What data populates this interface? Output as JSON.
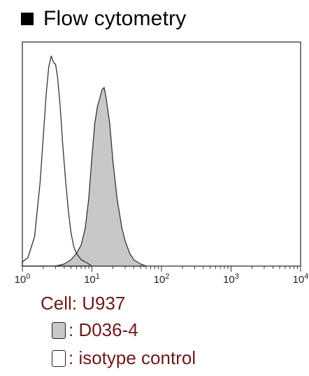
{
  "chart_data": {
    "type": "area",
    "title": "Flow cytometry",
    "xscale": "log",
    "xlim": [
      1,
      10000
    ],
    "xticks": [
      {
        "base": "10",
        "exp": "0"
      },
      {
        "base": "10",
        "exp": "1"
      },
      {
        "base": "10",
        "exp": "2"
      },
      {
        "base": "10",
        "exp": "3"
      },
      {
        "base": "10",
        "exp": "4"
      }
    ],
    "series": [
      {
        "name": "isotype control",
        "fill": "#ffffff",
        "x": [
          1.0,
          1.2,
          1.5,
          1.8,
          2.0,
          2.2,
          2.4,
          2.6,
          2.8,
          3.0,
          3.2,
          3.5,
          3.8,
          4.2,
          4.6,
          5.0,
          5.5,
          6.0,
          7.0,
          8.0,
          9.0,
          10.0
        ],
        "y": [
          2,
          4,
          14,
          40,
          62,
          82,
          95,
          100,
          97,
          96,
          90,
          76,
          58,
          40,
          26,
          16,
          9,
          6,
          3,
          2,
          1,
          0
        ]
      },
      {
        "name": "D036-4",
        "fill": "#c8c8c8",
        "x": [
          3.0,
          4.0,
          5.0,
          6.0,
          7.0,
          8.0,
          9.0,
          10.0,
          11.0,
          12.0,
          13.0,
          14.0,
          15.0,
          16.0,
          18.0,
          20.0,
          23.0,
          27.0,
          30.0,
          35.0,
          40.0,
          50.0,
          60.0
        ],
        "y": [
          0,
          1,
          3,
          6,
          10,
          18,
          32,
          52,
          68,
          76,
          80,
          84,
          85,
          80,
          68,
          50,
          32,
          18,
          12,
          6,
          3,
          1,
          0
        ]
      }
    ]
  },
  "cell_line": "Cell: U937",
  "legend": [
    {
      "label": ": D036-4",
      "swatch_color": "#c8c8c8"
    },
    {
      "label": ": isotype control",
      "swatch_color": "#ffffff"
    }
  ]
}
